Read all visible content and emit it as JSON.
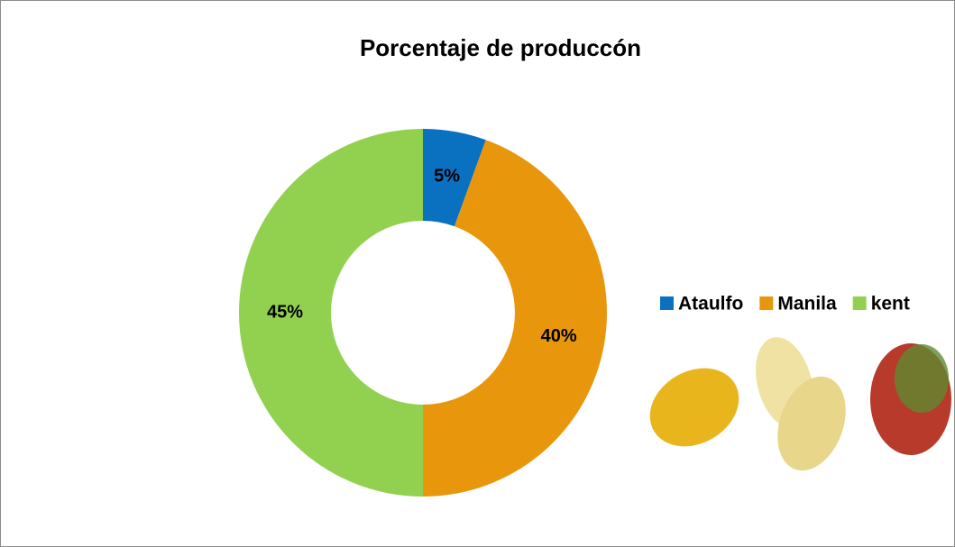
{
  "chart_data": {
    "type": "donut",
    "title": "Porcentaje  de produccón",
    "categories": [
      "Ataulfo",
      "Manila",
      "kent"
    ],
    "values": [
      5,
      40,
      45
    ],
    "value_labels": [
      "5%",
      "40%",
      "45%"
    ],
    "colors": [
      "#0a70c0",
      "#e8960c",
      "#92d050"
    ],
    "legend": "right"
  }
}
